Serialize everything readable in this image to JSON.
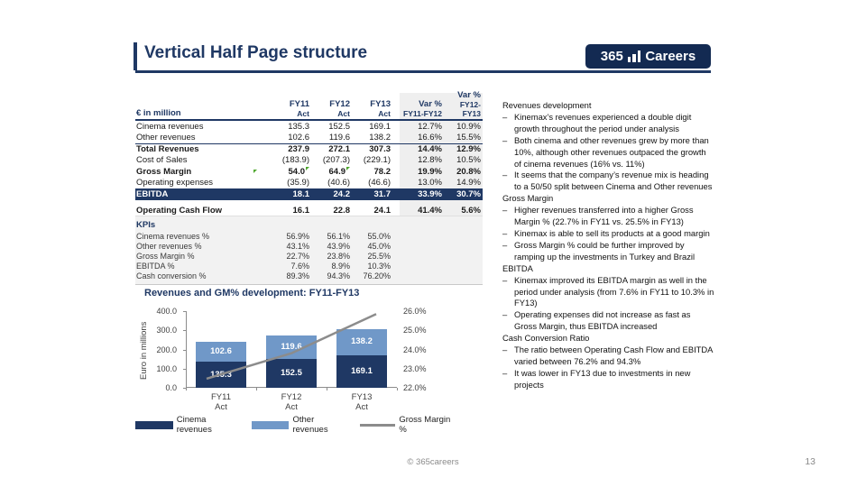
{
  "slide": {
    "title": "Vertical Half Page structure",
    "footer_copyright": "© 365careers",
    "page_number": "13"
  },
  "logo": {
    "number": "365",
    "word": "Careers"
  },
  "colors": {
    "navy": "#1F3864",
    "light_blue": "#7098C8",
    "line_gray": "#8C8C8C",
    "shading": "#EFEFEF",
    "marker_green": "#4EA72E"
  },
  "fin_table": {
    "unit_label": "€ in million",
    "headers": [
      {
        "line1": "FY11",
        "line2": "Act"
      },
      {
        "line1": "FY12",
        "line2": "Act"
      },
      {
        "line1": "FY13",
        "line2": "Act"
      },
      {
        "line1": "Var %",
        "line2": "FY11-FY12"
      },
      {
        "line1": "Var %",
        "line2": "FY12-FY13"
      }
    ],
    "rows": [
      {
        "label": "Cinema revenues",
        "values": [
          "135.3",
          "152.5",
          "169.1",
          "12.7%",
          "10.9%"
        ],
        "style": "plain"
      },
      {
        "label": "Other revenues",
        "values": [
          "102.6",
          "119.6",
          "138.2",
          "16.6%",
          "15.5%"
        ],
        "style": "plain"
      },
      {
        "label": "Total Revenues",
        "values": [
          "237.9",
          "272.1",
          "307.3",
          "14.4%",
          "12.9%"
        ],
        "style": "bold",
        "border_top": true
      },
      {
        "label": "Cost of Sales",
        "values": [
          "(183.9)",
          "(207.3)",
          "(229.1)",
          "12.8%",
          "10.5%"
        ],
        "style": "plain"
      },
      {
        "label": "Gross Margin",
        "values": [
          "54.0",
          "64.9",
          "78.2",
          "19.9%",
          "20.8%"
        ],
        "style": "bold",
        "markers": true
      },
      {
        "label": "Operating expenses",
        "values": [
          "(35.9)",
          "(40.6)",
          "(46.6)",
          "13.0%",
          "14.9%"
        ],
        "style": "plain"
      },
      {
        "label": "EBITDA",
        "values": [
          "18.1",
          "24.2",
          "31.7",
          "33.9%",
          "30.7%"
        ],
        "style": "highlight"
      },
      {
        "label": "Operating Cash Flow",
        "values": [
          "16.1",
          "22.8",
          "24.1",
          "41.4%",
          "5.6%"
        ],
        "style": "bold",
        "gap_before": true
      }
    ]
  },
  "kpi_table": {
    "title": "KPIs",
    "rows": [
      {
        "label": "Cinema revenues %",
        "values": [
          "56.9%",
          "56.1%",
          "55.0%"
        ]
      },
      {
        "label": "Other revenues %",
        "values": [
          "43.1%",
          "43.9%",
          "45.0%"
        ]
      },
      {
        "label": "Gross Margin %",
        "values": [
          "22.7%",
          "23.8%",
          "25.5%"
        ]
      },
      {
        "label": "EBITDA %",
        "values": [
          "7.6%",
          "8.9%",
          "10.3%"
        ]
      },
      {
        "label": "Cash conversion %",
        "values": [
          "89.3%",
          "94.3%",
          "76.20%"
        ]
      }
    ]
  },
  "chart_data": {
    "type": "bar",
    "subtype": "stacked bars with secondary-axis line",
    "title": "Revenues and GM% development: FY11-FY13",
    "categories": [
      "FY11 Act",
      "FY12 Act",
      "FY13 Act"
    ],
    "series": [
      {
        "name": "Cinema revenues",
        "type": "bar",
        "values": [
          135.3,
          152.5,
          169.1
        ],
        "color": "#1F3864"
      },
      {
        "name": "Other revenues",
        "type": "bar",
        "values": [
          102.6,
          119.6,
          138.2
        ],
        "color": "#7098C8"
      },
      {
        "name": "Gross Margin %",
        "type": "line",
        "values": [
          22.7,
          23.8,
          25.5
        ],
        "color": "#8C8C8C",
        "axis": "right"
      }
    ],
    "ylabel": "Euro in millions",
    "left_axis": {
      "min": 0,
      "max": 400,
      "step": 100
    },
    "right_axis": {
      "min": 22,
      "max": 26,
      "step": 1,
      "suffix": "%"
    },
    "stacked": true,
    "grid": false,
    "legend_position": "bottom"
  },
  "commentary": {
    "bullet_char": "–",
    "sections": [
      {
        "heading": "Revenues development",
        "bullets": [
          "Kinemax’s revenues experienced a double digit growth throughout the period under analysis",
          "Both cinema and other revenues grew by more than 10%, although other revenues outpaced the growth of cinema revenues (16% vs. 11%)",
          "It seems that the company’s revenue mix is heading to a 50/50 split between Cinema and Other revenues"
        ]
      },
      {
        "heading": "Gross Margin",
        "bullets": [
          "Higher revenues transferred into a higher Gross Margin % (22.7% in FY11 vs. 25.5% in FY13)",
          "Kinemax is able to sell its products at a good margin",
          "Gross Margin % could be further improved by ramping up the investments in Turkey and Brazil"
        ]
      },
      {
        "heading": "EBITDA",
        "bullets": [
          "Kinemax improved its EBITDA margin as well in the period under analysis (from 7.6% in FY11 to 10.3% in FY13)",
          "Operating expenses did not increase as fast as Gross Margin, thus EBITDA increased"
        ]
      },
      {
        "heading": "Cash Conversion Ratio",
        "bullets": [
          "The ratio between Operating Cash Flow and EBITDA varied between 76.2% and 94.3%",
          "It was lower in FY13 due to investments in new projects"
        ]
      }
    ]
  }
}
